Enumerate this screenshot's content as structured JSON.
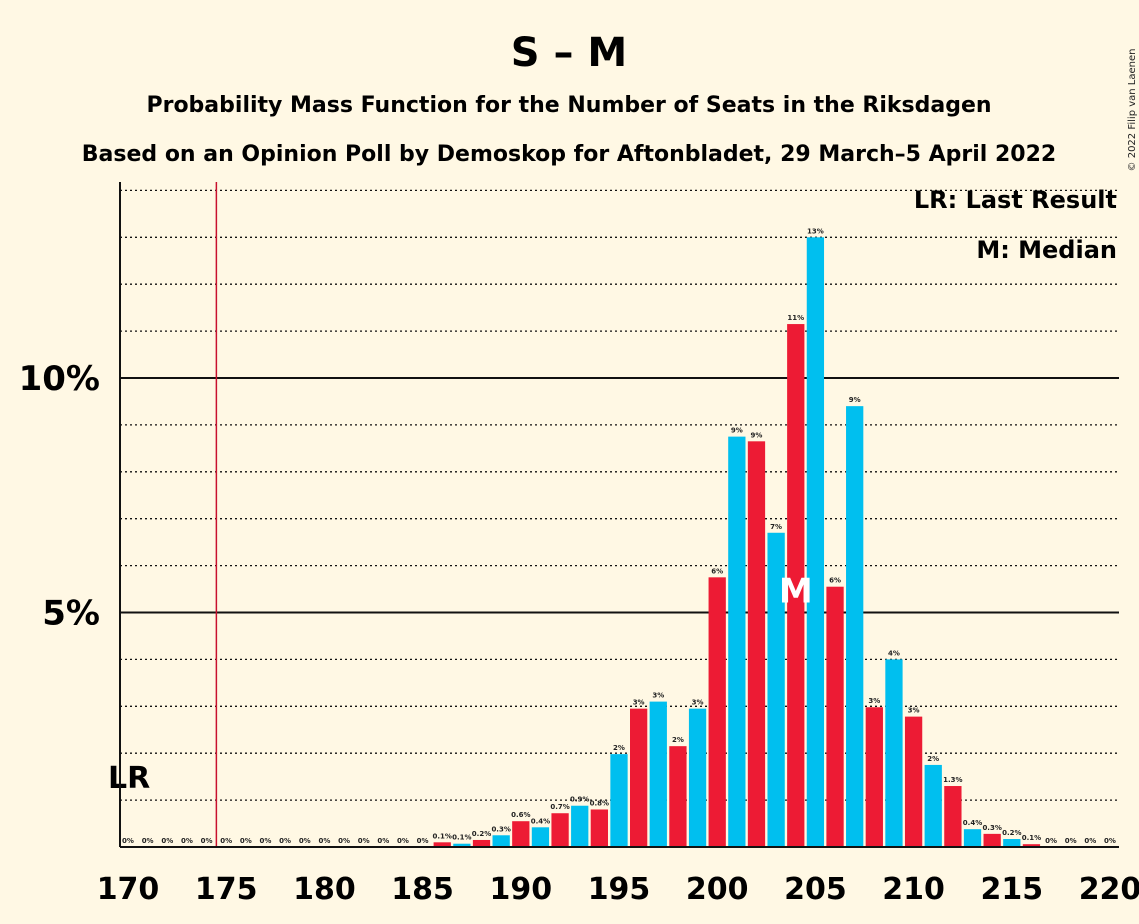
{
  "copyright": "© 2022 Filip van Laenen",
  "chart_data": {
    "type": "bar",
    "title": "S – M",
    "subtitle": "Probability Mass Function for the Number of Seats in the Riksdagen",
    "subtitle2": "Based on an Opinion Poll by Demoskop for Aftonbladet, 29 March–5 April 2022",
    "legend": [
      "LR: Last Result",
      "M: Median"
    ],
    "legend_position": "top-right",
    "last_result": {
      "label": "LR",
      "seat": 175,
      "color": "#C8102E"
    },
    "median": {
      "label": "M",
      "seat": 204
    },
    "xlim": [
      170,
      220
    ],
    "ylim": [
      0,
      14
    ],
    "x_ticks": [
      170,
      175,
      180,
      185,
      190,
      195,
      200,
      205,
      210,
      215,
      220
    ],
    "x_tick_labels": [
      "170",
      "175",
      "180",
      "185",
      "190",
      "195",
      "200",
      "205",
      "210",
      "215",
      "220"
    ],
    "y_ticks_major": [
      5,
      10
    ],
    "y_tick_labels": [
      "5%",
      "10%"
    ],
    "colors": {
      "red": "#ED1B34",
      "blue": "#00BFEF",
      "background": "#FFF8E4"
    },
    "seats": [
      170,
      171,
      172,
      173,
      174,
      175,
      176,
      177,
      178,
      179,
      180,
      181,
      182,
      183,
      184,
      185,
      186,
      187,
      188,
      189,
      190,
      191,
      192,
      193,
      194,
      195,
      196,
      197,
      198,
      199,
      200,
      201,
      202,
      203,
      204,
      205,
      206,
      207,
      208,
      209,
      210,
      211,
      212,
      213,
      214,
      215,
      216,
      217,
      218,
      219,
      220
    ],
    "values": [
      0,
      0,
      0,
      0,
      0,
      0,
      0,
      0,
      0,
      0,
      0,
      0,
      0,
      0,
      0,
      0,
      0.1,
      0.07,
      0.15,
      0.25,
      0.55,
      0.42,
      0.72,
      0.88,
      0.8,
      1.98,
      2.95,
      3.1,
      2.15,
      2.95,
      5.75,
      8.75,
      8.65,
      6.7,
      11.15,
      13.0,
      5.55,
      9.4,
      2.98,
      4.0,
      2.78,
      1.75,
      1.3,
      0.38,
      0.28,
      0.17,
      0.06,
      0,
      0,
      0,
      0
    ],
    "data_labels": [
      "0%",
      "0%",
      "0%",
      "0%",
      "0%",
      "0%",
      "0%",
      "0%",
      "0%",
      "0%",
      "0%",
      "0%",
      "0%",
      "0%",
      "0%",
      "0%",
      "0.1%",
      "0.1%",
      "0.2%",
      "0.3%",
      "0.6%",
      "0.4%",
      "0.7%",
      "0.9%",
      "0.8%",
      "2%",
      "3%",
      "3%",
      "2%",
      "3%",
      "6%",
      "9%",
      "9%",
      "7%",
      "11%",
      "13%",
      "6%",
      "9%",
      "3%",
      "4%",
      "3%",
      "2%",
      "1.3%",
      "0.4%",
      "0.3%",
      "0.2%",
      "0.1%",
      "0%",
      "0%",
      "0%",
      "0%"
    ]
  }
}
